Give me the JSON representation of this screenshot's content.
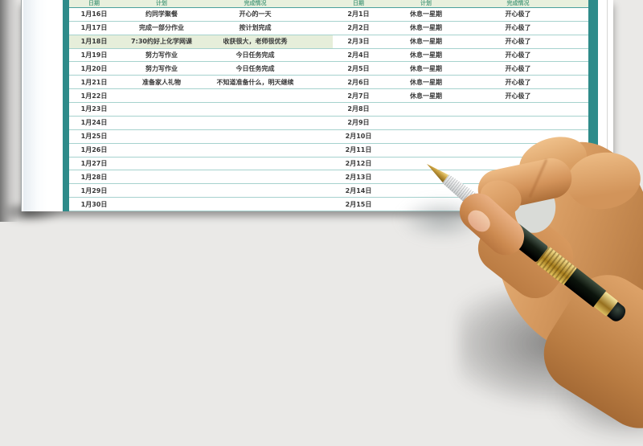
{
  "scene": {
    "background_color": "#eae9e7",
    "paper_color": "#ffffff",
    "photo_alt": "right hand holding a black and gold fountain pen"
  },
  "table": {
    "accent_color": "#2e8b8a",
    "row_line_color": "#a6d2ce",
    "highlight_bg": "#e6eeda",
    "header": {
      "bg": "#e8f0dd",
      "text_color": "#5aa285",
      "columns": [
        "日期",
        "计划",
        "完成情况"
      ]
    },
    "left_rows": [
      {
        "date": "1月16日",
        "plan": "约同学聚餐",
        "status": "开心的一天"
      },
      {
        "date": "1月17日",
        "plan": "完成一部分作业",
        "status": "按计划完成"
      },
      {
        "date": "1月18日",
        "plan": "7:30约好上化学网课",
        "status": "收获很大，老师很优秀",
        "highlight": true
      },
      {
        "date": "1月19日",
        "plan": "努力写作业",
        "status": "今日任务完成"
      },
      {
        "date": "1月20日",
        "plan": "努力写作业",
        "status": "今日任务完成"
      },
      {
        "date": "1月21日",
        "plan": "准备家人礼物",
        "status": "不知道准备什么，明天继续"
      },
      {
        "date": "1月22日"
      },
      {
        "date": "1月23日"
      },
      {
        "date": "1月24日"
      },
      {
        "date": "1月25日"
      },
      {
        "date": "1月26日"
      },
      {
        "date": "1月27日"
      },
      {
        "date": "1月28日"
      },
      {
        "date": "1月29日"
      },
      {
        "date": "1月30日"
      }
    ],
    "right_rows": [
      {
        "date": "2月1日",
        "plan": "休息一星期",
        "status": "开心极了"
      },
      {
        "date": "2月2日",
        "plan": "休息一星期",
        "status": "开心极了"
      },
      {
        "date": "2月3日",
        "plan": "休息一星期",
        "status": "开心极了"
      },
      {
        "date": "2月4日",
        "plan": "休息一星期",
        "status": "开心极了"
      },
      {
        "date": "2月5日",
        "plan": "休息一星期",
        "status": "开心极了"
      },
      {
        "date": "2月6日",
        "plan": "休息一星期",
        "status": "开心极了"
      },
      {
        "date": "2月7日",
        "plan": "休息一星期",
        "status": "开心极了"
      },
      {
        "date": "2月8日"
      },
      {
        "date": "2月9日"
      },
      {
        "date": "2月10日"
      },
      {
        "date": "2月11日"
      },
      {
        "date": "2月12日"
      },
      {
        "date": "2月13日"
      },
      {
        "date": "2月14日"
      },
      {
        "date": "2月15日"
      }
    ]
  },
  "pen": {
    "barrel_color": "#121a11",
    "gold_color": "#c9a23f",
    "grip_color": "#e8eaea"
  },
  "hand": {
    "skin_color": "#d4945a"
  }
}
